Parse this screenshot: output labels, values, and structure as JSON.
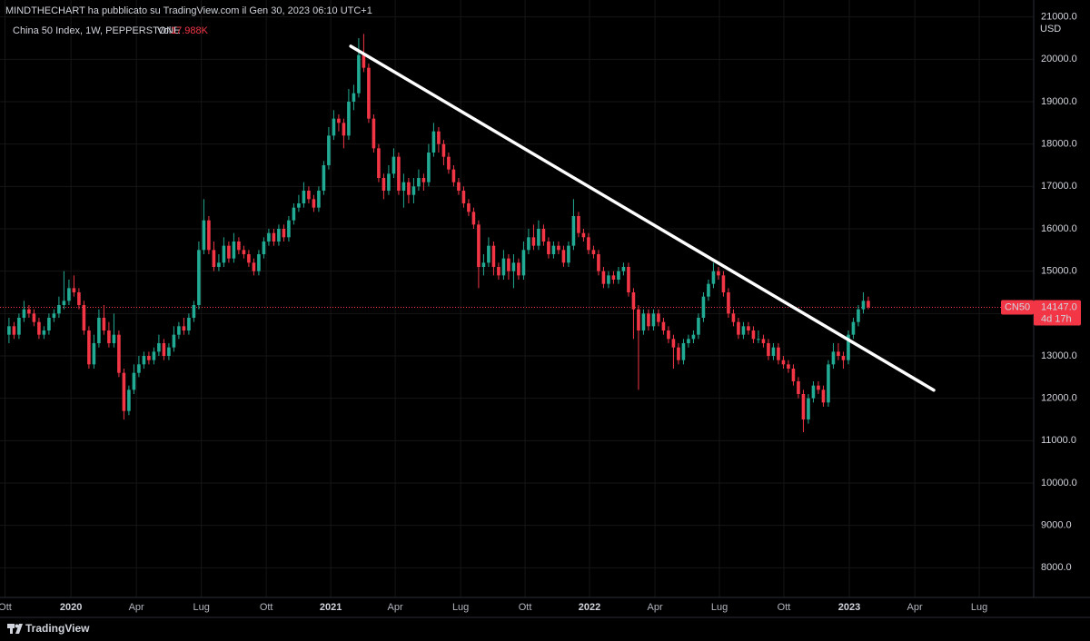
{
  "header": "MINDTHECHART ha pubblicato su TradingView.com il Gen 30, 2023 06:10 UTC+1",
  "footer": "TradingView",
  "chart_data": {
    "type": "candlestick",
    "title": "China 50 Index, 1W, PEPPERSTONE",
    "volume_caption": "Vol",
    "volume": "17.988K",
    "currency": "USD",
    "up_color": "#22ab94",
    "down_color": "#f23645",
    "grid": true,
    "ylim": [
      7300,
      21400
    ],
    "yticks": [
      {
        "value": 8000,
        "label": "8000.0"
      },
      {
        "value": 9000,
        "label": "9000.0"
      },
      {
        "value": 10000,
        "label": "10000.0"
      },
      {
        "value": 11000,
        "label": "11000.0"
      },
      {
        "value": 12000,
        "label": "12000.0"
      },
      {
        "value": 13000,
        "label": "13000.0"
      },
      {
        "value": 14000,
        "label": "14000.0"
      },
      {
        "value": 15000,
        "label": "15000.0"
      },
      {
        "value": 16000,
        "label": "16000.0"
      },
      {
        "value": 17000,
        "label": "17000.0"
      },
      {
        "value": 18000,
        "label": "18000.0"
      },
      {
        "value": 19000,
        "label": "19000.0"
      },
      {
        "value": 20000,
        "label": "20000.0"
      },
      {
        "value": 21000,
        "label": "21000.0"
      }
    ],
    "xlim": [
      -1.8,
      205.1
    ],
    "xticks": [
      {
        "value": -0.8,
        "label": "Ott"
      },
      {
        "value": 12.4,
        "label": "2020"
      },
      {
        "value": 25.5,
        "label": "Apr"
      },
      {
        "value": 38.5,
        "label": "Lug"
      },
      {
        "value": 51.5,
        "label": "Ott"
      },
      {
        "value": 64.4,
        "label": "2021"
      },
      {
        "value": 77.3,
        "label": "Apr"
      },
      {
        "value": 90.4,
        "label": "Lug"
      },
      {
        "value": 103.3,
        "label": "Ott"
      },
      {
        "value": 116.2,
        "label": "2022"
      },
      {
        "value": 129.3,
        "label": "Apr"
      },
      {
        "value": 142.2,
        "label": "Lug"
      },
      {
        "value": 155.1,
        "label": "Ott"
      },
      {
        "value": 168.2,
        "label": "2023"
      },
      {
        "value": 181.3,
        "label": "Apr"
      },
      {
        "value": 194.2,
        "label": "Lug"
      }
    ],
    "last_price": {
      "symbol": "CN50",
      "value": 14147,
      "label": "14147.0",
      "countdown": "4d 17h"
    },
    "trendline": {
      "x": [
        68.4,
        185.1
      ],
      "y": [
        20310,
        12192
      ],
      "color": "#ffffff"
    },
    "candles": [
      [
        13500,
        13900,
        13300,
        13700
      ],
      [
        13700,
        13800,
        13400,
        13500
      ],
      [
        13500,
        14000,
        13400,
        13900
      ],
      [
        13900,
        14300,
        13800,
        14100
      ],
      [
        14100,
        14200,
        13900,
        14000
      ],
      [
        14000,
        14100,
        13700,
        13800
      ],
      [
        13800,
        13900,
        13400,
        13500
      ],
      [
        13500,
        13700,
        13400,
        13600
      ],
      [
        13600,
        14000,
        13500,
        13900
      ],
      [
        13900,
        14100,
        13800,
        14000
      ],
      [
        14000,
        14400,
        13900,
        14200
      ],
      [
        14200,
        15000,
        14100,
        14300
      ],
      [
        14300,
        14800,
        14200,
        14600
      ],
      [
        14600,
        14900,
        14400,
        14500
      ],
      [
        14500,
        14600,
        14100,
        14200
      ],
      [
        14200,
        14300,
        13500,
        13600
      ],
      [
        13600,
        13700,
        12700,
        12800
      ],
      [
        12800,
        13500,
        12700,
        13300
      ],
      [
        13300,
        14100,
        13200,
        13900
      ],
      [
        13900,
        14200,
        13500,
        13600
      ],
      [
        13600,
        13800,
        13200,
        13300
      ],
      [
        13300,
        14000,
        13200,
        13500
      ],
      [
        13500,
        13600,
        12500,
        12600
      ],
      [
        12600,
        12700,
        11500,
        11700
      ],
      [
        11700,
        12300,
        11600,
        12200
      ],
      [
        12200,
        12800,
        12100,
        12600
      ],
      [
        12600,
        13000,
        12500,
        12800
      ],
      [
        12800,
        13100,
        12700,
        13000
      ],
      [
        13000,
        13100,
        12800,
        12900
      ],
      [
        12900,
        13200,
        12800,
        13100
      ],
      [
        13100,
        13500,
        13000,
        13300
      ],
      [
        13300,
        13400,
        12900,
        13000
      ],
      [
        13000,
        13300,
        12900,
        13200
      ],
      [
        13200,
        13700,
        13100,
        13500
      ],
      [
        13500,
        13800,
        13400,
        13700
      ],
      [
        13700,
        13900,
        13500,
        13600
      ],
      [
        13600,
        14000,
        13500,
        13900
      ],
      [
        13900,
        14300,
        13800,
        14200
      ],
      [
        14200,
        15700,
        14100,
        15500
      ],
      [
        15500,
        16700,
        15400,
        16200
      ],
      [
        16200,
        16300,
        15400,
        15500
      ],
      [
        15500,
        15700,
        15000,
        15100
      ],
      [
        15100,
        15400,
        15000,
        15200
      ],
      [
        15200,
        15800,
        15100,
        15600
      ],
      [
        15600,
        15700,
        15200,
        15300
      ],
      [
        15300,
        15900,
        15200,
        15700
      ],
      [
        15700,
        15800,
        15400,
        15500
      ],
      [
        15500,
        15600,
        15300,
        15400
      ],
      [
        15400,
        15500,
        15100,
        15200
      ],
      [
        15200,
        15300,
        14900,
        15000
      ],
      [
        15000,
        15500,
        14900,
        15400
      ],
      [
        15400,
        15800,
        15300,
        15700
      ],
      [
        15700,
        16000,
        15600,
        15900
      ],
      [
        15900,
        16000,
        15600,
        15700
      ],
      [
        15700,
        16100,
        15600,
        16000
      ],
      [
        16000,
        16100,
        15700,
        15800
      ],
      [
        15800,
        16300,
        15700,
        16200
      ],
      [
        16200,
        16600,
        16100,
        16500
      ],
      [
        16500,
        16800,
        16400,
        16600
      ],
      [
        16600,
        17100,
        16500,
        16900
      ],
      [
        16900,
        17000,
        16600,
        16700
      ],
      [
        16700,
        16800,
        16400,
        16500
      ],
      [
        16500,
        17000,
        16400,
        16900
      ],
      [
        16900,
        17600,
        16800,
        17500
      ],
      [
        17500,
        18400,
        17400,
        18200
      ],
      [
        18200,
        18800,
        18100,
        18600
      ],
      [
        18600,
        18700,
        18300,
        18500
      ],
      [
        18500,
        18600,
        17900,
        18200
      ],
      [
        18200,
        19300,
        18100,
        19000
      ],
      [
        19000,
        19400,
        18800,
        19200
      ],
      [
        19200,
        20500,
        19100,
        20100
      ],
      [
        20100,
        20600,
        19700,
        19800
      ],
      [
        19800,
        19900,
        18500,
        18600
      ],
      [
        18600,
        18700,
        17800,
        17900
      ],
      [
        17900,
        18000,
        17100,
        17200
      ],
      [
        17200,
        17300,
        16700,
        16900
      ],
      [
        16900,
        17500,
        16800,
        17300
      ],
      [
        17300,
        17900,
        17200,
        17700
      ],
      [
        17700,
        17800,
        16800,
        16900
      ],
      [
        16900,
        17300,
        16500,
        17100
      ],
      [
        17100,
        17200,
        16600,
        16800
      ],
      [
        16800,
        17200,
        16600,
        17000
      ],
      [
        17000,
        17400,
        16900,
        17200
      ],
      [
        17200,
        17300,
        16900,
        17100
      ],
      [
        17100,
        18000,
        17000,
        17800
      ],
      [
        17800,
        18500,
        17700,
        18300
      ],
      [
        18300,
        18400,
        17800,
        18000
      ],
      [
        18000,
        18100,
        17500,
        17700
      ],
      [
        17700,
        17800,
        17300,
        17400
      ],
      [
        17400,
        17500,
        17000,
        17100
      ],
      [
        17100,
        17200,
        16800,
        16900
      ],
      [
        16900,
        17000,
        16500,
        16600
      ],
      [
        16600,
        16700,
        16300,
        16400
      ],
      [
        16400,
        16500,
        16000,
        16100
      ],
      [
        16100,
        16200,
        14600,
        15100
      ],
      [
        15100,
        15400,
        14900,
        15200
      ],
      [
        15200,
        15800,
        15100,
        15600
      ],
      [
        15600,
        15700,
        14900,
        15100
      ],
      [
        15100,
        15200,
        14800,
        14900
      ],
      [
        14900,
        15500,
        14800,
        15300
      ],
      [
        15300,
        15400,
        14800,
        15000
      ],
      [
        15000,
        15400,
        14600,
        15200
      ],
      [
        15200,
        15300,
        14800,
        14900
      ],
      [
        14900,
        15700,
        14800,
        15500
      ],
      [
        15500,
        16000,
        15400,
        15800
      ],
      [
        15800,
        16100,
        15500,
        15600
      ],
      [
        15600,
        16200,
        15500,
        16000
      ],
      [
        16000,
        16100,
        15600,
        15700
      ],
      [
        15700,
        15800,
        15300,
        15400
      ],
      [
        15400,
        15700,
        15300,
        15600
      ],
      [
        15600,
        15700,
        15400,
        15500
      ],
      [
        15500,
        15600,
        15100,
        15200
      ],
      [
        15200,
        15700,
        15100,
        15600
      ],
      [
        15600,
        16700,
        15500,
        16300
      ],
      [
        16300,
        16400,
        15800,
        15900
      ],
      [
        15900,
        16000,
        15700,
        15800
      ],
      [
        15800,
        15900,
        15400,
        15500
      ],
      [
        15500,
        15600,
        15300,
        15400
      ],
      [
        15400,
        15500,
        14900,
        15000
      ],
      [
        15000,
        15100,
        14600,
        14700
      ],
      [
        14700,
        15000,
        14600,
        14900
      ],
      [
        14900,
        15000,
        14700,
        14800
      ],
      [
        14800,
        15100,
        14700,
        15000
      ],
      [
        15000,
        15200,
        14900,
        15100
      ],
      [
        15100,
        15200,
        14400,
        14500
      ],
      [
        14500,
        14600,
        13400,
        14100
      ],
      [
        14100,
        14200,
        12200,
        13600
      ],
      [
        13600,
        14100,
        13500,
        14000
      ],
      [
        14000,
        14100,
        13600,
        13700
      ],
      [
        13700,
        14100,
        13600,
        14000
      ],
      [
        14000,
        14100,
        13700,
        13800
      ],
      [
        13800,
        13900,
        13500,
        13600
      ],
      [
        13600,
        13700,
        13300,
        13400
      ],
      [
        13400,
        13500,
        12700,
        13200
      ],
      [
        13200,
        13300,
        12800,
        12900
      ],
      [
        12900,
        13400,
        12800,
        13300
      ],
      [
        13300,
        13500,
        13200,
        13400
      ],
      [
        13400,
        13600,
        13300,
        13500
      ],
      [
        13500,
        14000,
        13400,
        13900
      ],
      [
        13900,
        14500,
        13800,
        14400
      ],
      [
        14400,
        14800,
        14300,
        14700
      ],
      [
        14700,
        15200,
        14600,
        15000
      ],
      [
        15000,
        15100,
        14800,
        14900
      ],
      [
        14900,
        15000,
        14400,
        14500
      ],
      [
        14500,
        14600,
        13900,
        14000
      ],
      [
        14000,
        14100,
        13700,
        13800
      ],
      [
        13800,
        13900,
        13400,
        13500
      ],
      [
        13500,
        13800,
        13400,
        13700
      ],
      [
        13700,
        13800,
        13500,
        13600
      ],
      [
        13600,
        13700,
        13300,
        13400
      ],
      [
        13400,
        13600,
        13300,
        13400
      ],
      [
        13400,
        13500,
        13200,
        13300
      ],
      [
        13300,
        13400,
        12900,
        13000
      ],
      [
        13000,
        13300,
        12900,
        13200
      ],
      [
        13200,
        13300,
        12800,
        12900
      ],
      [
        12900,
        13000,
        12700,
        12800
      ],
      [
        12800,
        12900,
        12600,
        12700
      ],
      [
        12700,
        12800,
        12300,
        12400
      ],
      [
        12400,
        12500,
        12000,
        12100
      ],
      [
        12100,
        12200,
        11200,
        11500
      ],
      [
        11500,
        12100,
        11400,
        12000
      ],
      [
        12000,
        12400,
        11900,
        12300
      ],
      [
        12300,
        12400,
        12100,
        12200
      ],
      [
        12200,
        12300,
        11800,
        11900
      ],
      [
        11900,
        12900,
        11800,
        12800
      ],
      [
        12800,
        13300,
        12700,
        13100
      ],
      [
        13100,
        13300,
        12900,
        13000
      ],
      [
        13000,
        13100,
        12700,
        12900
      ],
      [
        12900,
        13600,
        12800,
        13500
      ],
      [
        13500,
        13900,
        13400,
        13800
      ],
      [
        13800,
        14200,
        13700,
        14100
      ],
      [
        14100,
        14500,
        14000,
        14300
      ],
      [
        14300,
        14400,
        14100,
        14147
      ]
    ]
  }
}
